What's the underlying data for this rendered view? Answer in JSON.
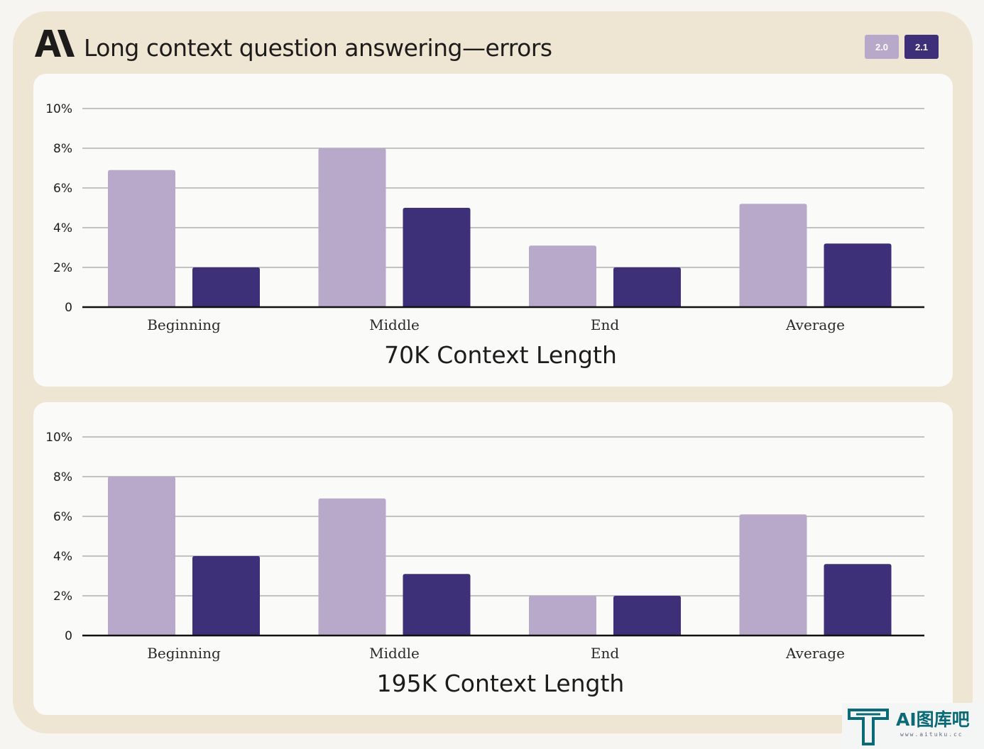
{
  "header": {
    "title": "Long context question answering—errors",
    "logo_icon": "anthropic-logo-icon"
  },
  "legend": [
    {
      "label": "2.0",
      "color": "#b8a9ca"
    },
    {
      "label": "2.1",
      "color": "#3d2f78"
    }
  ],
  "watermark": {
    "text": "AI图库吧",
    "sub": "www.aituku.cc",
    "icon": "aituku-logo-icon"
  },
  "chart_data": [
    {
      "type": "bar",
      "title": "70K Context Length",
      "categories": [
        "Beginning",
        "Middle",
        "End",
        "Average"
      ],
      "series": [
        {
          "name": "2.0",
          "values": [
            6.9,
            8.0,
            3.1,
            5.2
          ]
        },
        {
          "name": "2.1",
          "values": [
            2.0,
            5.0,
            2.0,
            3.2
          ]
        }
      ],
      "ylim": [
        0,
        10
      ],
      "yticks": [
        {
          "value": 0,
          "label": "0"
        },
        {
          "value": 2,
          "label": "2%"
        },
        {
          "value": 4,
          "label": "4%"
        },
        {
          "value": 6,
          "label": "6%"
        },
        {
          "value": 8,
          "label": "8%"
        },
        {
          "value": 10,
          "label": "10%"
        }
      ],
      "grid": true,
      "legend_position": "top-right"
    },
    {
      "type": "bar",
      "title": "195K Context Length",
      "categories": [
        "Beginning",
        "Middle",
        "End",
        "Average"
      ],
      "series": [
        {
          "name": "2.0",
          "values": [
            8.0,
            6.9,
            2.0,
            6.1
          ]
        },
        {
          "name": "2.1",
          "values": [
            4.0,
            3.1,
            2.0,
            3.6
          ]
        }
      ],
      "ylim": [
        0,
        10
      ],
      "yticks": [
        {
          "value": 0,
          "label": "0"
        },
        {
          "value": 2,
          "label": "2%"
        },
        {
          "value": 4,
          "label": "4%"
        },
        {
          "value": 6,
          "label": "6%"
        },
        {
          "value": 8,
          "label": "8%"
        },
        {
          "value": 10,
          "label": "10%"
        }
      ],
      "grid": true,
      "legend_position": "top-right"
    }
  ]
}
